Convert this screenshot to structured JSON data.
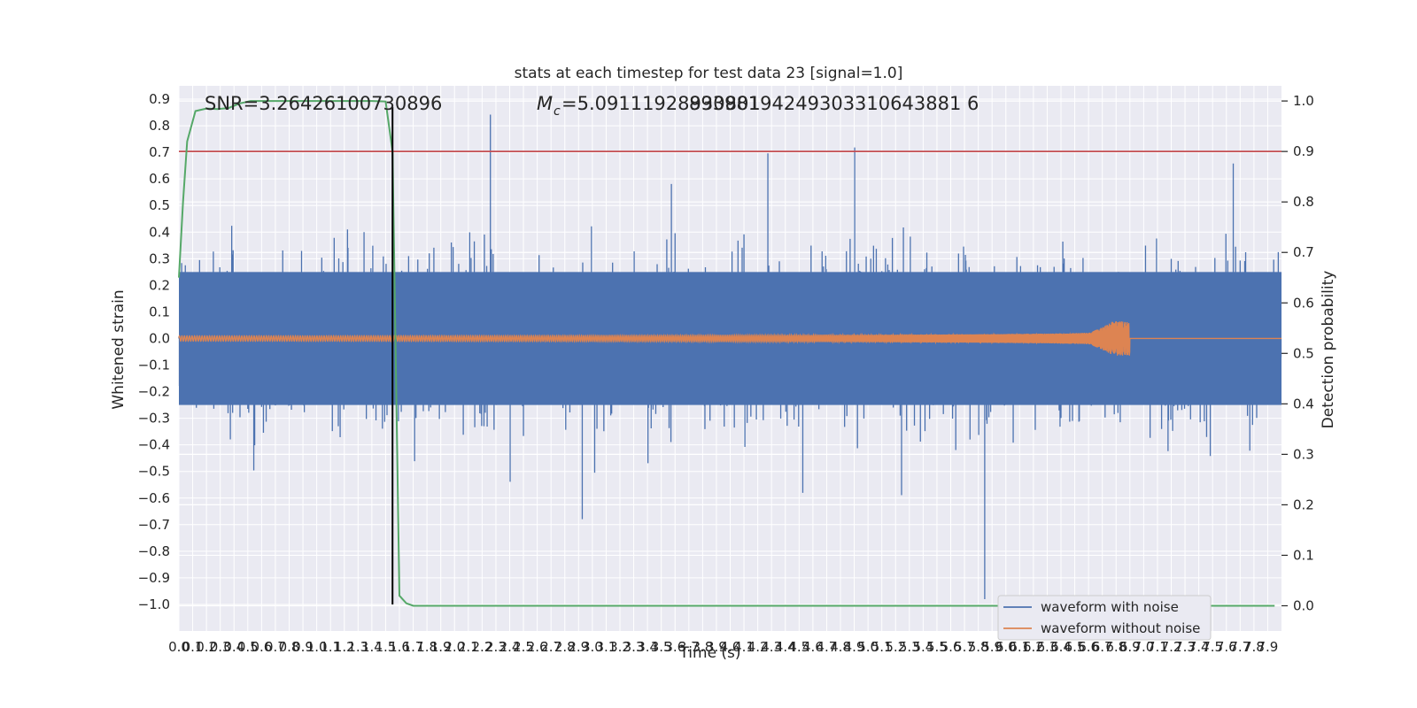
{
  "chart_data": {
    "type": "line",
    "title": "stats at each timestep for test data 23 [signal=1.0]",
    "xlabel": "Time (s)",
    "ylabel_left": "Whitened strain",
    "ylabel_right": "Detection probability",
    "annotations": {
      "snr": "SNR=3.26426100730896",
      "mc_symbol": "M",
      "mc_sub": "c",
      "mc_value": "=5.09111928930801",
      "mc_overlap": "89398194249303310643881 6"
    },
    "x_ticks": [
      "0.0",
      "0.1",
      "0.2",
      "0.3",
      "0.4",
      "0.5",
      "0.6",
      "0.7",
      "0.8",
      "0.9",
      "1.0",
      "1.1",
      "1.2",
      "1.3",
      "1.4",
      "1.5",
      "1.6",
      "1.7",
      "1.8",
      "1.9",
      "2.0",
      "2.1",
      "2.2",
      "2.3",
      "2.4",
      "2.5",
      "2.6",
      "2.7",
      "2.8",
      "2.9",
      "3.0",
      "3.1",
      "3.2",
      "3.3",
      "3.4",
      "3.5",
      "3.6",
      "3.7",
      "3.8",
      "3.9",
      "4.0",
      "4.1",
      "4.2",
      "4.3",
      "4.4",
      "4.5",
      "4.6",
      "4.7",
      "4.8",
      "4.9",
      "5.0",
      "5.1",
      "5.2",
      "5.3",
      "5.4",
      "5.5",
      "5.6",
      "5.7",
      "5.8",
      "5.9",
      "6.0",
      "6.1",
      "6.2",
      "6.3",
      "6.4",
      "6.5",
      "6.6",
      "6.7",
      "6.8",
      "6.9",
      "7.0",
      "7.1",
      "7.2",
      "7.3",
      "7.4",
      "7.5",
      "7.6",
      "7.7",
      "7.8",
      "7.9"
    ],
    "y_ticks_left": [
      "0.9",
      "0.8",
      "0.7",
      "0.6",
      "0.5",
      "0.4",
      "0.3",
      "0.2",
      "0.1",
      "0.0",
      "−0.1",
      "−0.2",
      "−0.3",
      "−0.4",
      "−0.5",
      "−0.6",
      "−0.7",
      "−0.8",
      "−0.9",
      "−1.0"
    ],
    "y_ticks_right": [
      "1.0",
      "0.9",
      "0.8",
      "0.7",
      "0.6",
      "0.5",
      "0.4",
      "0.3",
      "0.2",
      "0.1",
      "0.0"
    ],
    "xlim": [
      0.0,
      8.0
    ],
    "ylim_left": [
      -1.1,
      0.95
    ],
    "ylim_right": [
      -0.05,
      1.03
    ],
    "threshold_probability": 0.9,
    "detection_time": 1.55,
    "merger_time": 6.9,
    "probability_series": {
      "name": "detection probability",
      "x": [
        0.0,
        0.03,
        0.06,
        0.12,
        0.2,
        0.28,
        0.36,
        0.44,
        0.52,
        0.6,
        0.8,
        1.0,
        1.2,
        1.4,
        1.5,
        1.55,
        1.6,
        1.65,
        1.7,
        1.8,
        2.5,
        4.0,
        6.0,
        7.95
      ],
      "y": [
        0.65,
        0.8,
        0.92,
        0.98,
        0.985,
        0.984,
        0.986,
        0.995,
        1.0,
        1.0,
        1.0,
        1.0,
        1.0,
        1.0,
        0.999,
        0.9,
        0.02,
        0.005,
        0.0,
        0.0,
        0.0,
        0.0,
        0.0,
        0.0
      ]
    },
    "legend": {
      "position": "lower-right",
      "entries": [
        {
          "label": "waveform with noise",
          "color": "#4c72b0"
        },
        {
          "label": "waveform without noise",
          "color": "#dd8452"
        }
      ]
    },
    "grid": true,
    "colors": {
      "noise": "#4c72b0",
      "clean": "#dd8452",
      "probability": "#55a868",
      "threshold": "#c44e52",
      "detection_line": "#000000",
      "axes_bg": "#eaeaf2",
      "grid": "#ffffff"
    }
  }
}
